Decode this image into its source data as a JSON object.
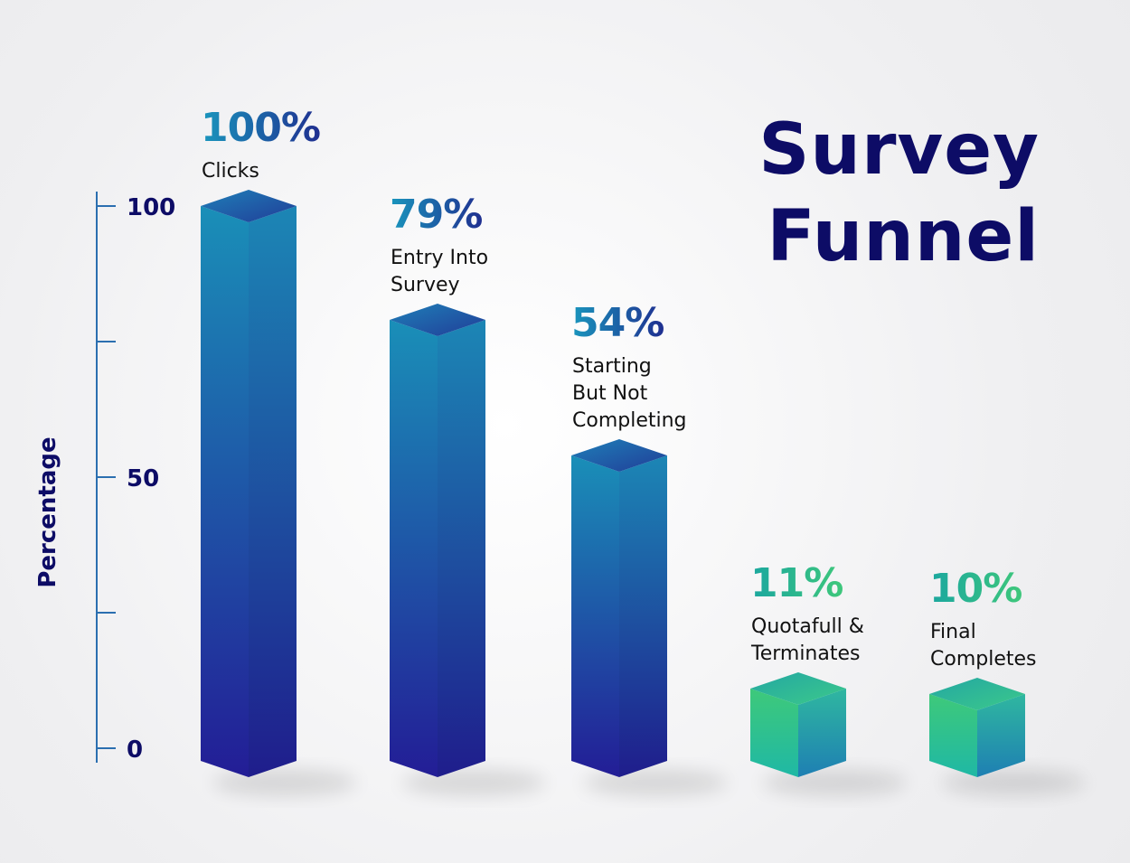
{
  "chart_data": {
    "type": "bar",
    "title": [
      "Survey",
      "Funnel"
    ],
    "ylabel": "Percentage",
    "ylim": [
      0,
      100
    ],
    "yticks": [
      0,
      25,
      50,
      75,
      100
    ],
    "ytick_labels": [
      "0",
      "",
      "50",
      "",
      "100"
    ],
    "categories": [
      [
        "Clicks"
      ],
      [
        "Entry Into",
        "Survey"
      ],
      [
        "Starting",
        "But Not",
        "Completing"
      ],
      [
        "Quotafull &",
        "Terminates"
      ],
      [
        "Final",
        "Completes"
      ]
    ],
    "values": [
      100,
      79,
      54,
      11,
      10
    ],
    "value_labels": [
      "100%",
      "79%",
      "54%",
      "11%",
      "10%"
    ]
  },
  "colors": {
    "title": "#0d0c66",
    "axis": "#2b6fb0",
    "blue_top": "#1a8fb8",
    "blue_bottom": "#231d96",
    "green_top": "#3ec97a",
    "green_bottom": "#1e7fb3",
    "label_blue_from": "#1a96bd",
    "label_blue_to": "#1f2f90",
    "label_green_from": "#1ba79f",
    "label_green_to": "#3ec77b"
  }
}
